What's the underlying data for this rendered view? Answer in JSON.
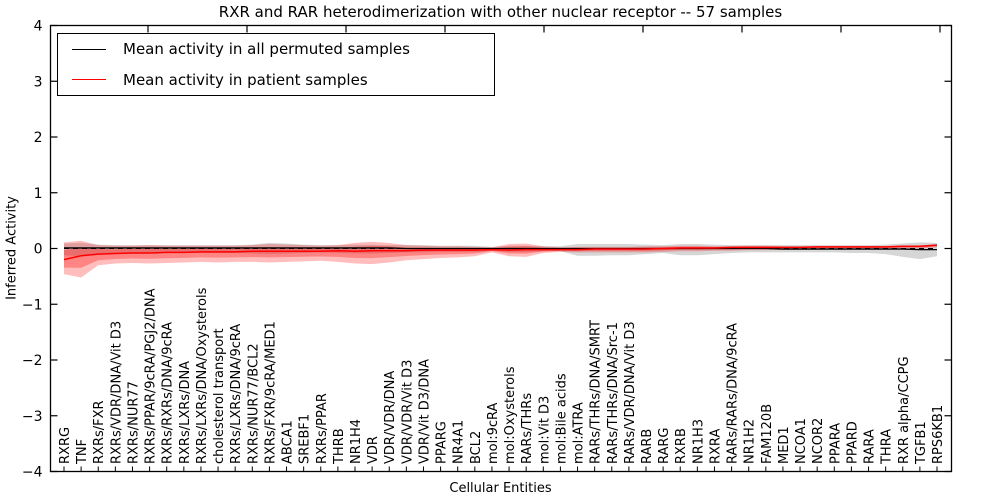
{
  "figure": {
    "title": "RXR and RAR heterodimerization with other nuclear receptor -- 57 samples",
    "xlabel": "Cellular Entities",
    "ylabel": "Inferred Activity"
  },
  "legend": {
    "items": [
      {
        "label": "Mean activity in all permuted samples",
        "color": "#000000"
      },
      {
        "label": "Mean activity in patient samples",
        "color": "#ff0000"
      }
    ]
  },
  "chart_data": {
    "type": "line",
    "title": "RXR and RAR heterodimerization with other nuclear receptor -- 57 samples",
    "xlabel": "Cellular Entities",
    "ylabel": "Inferred Activity",
    "ylim": [
      -4,
      4
    ],
    "yticks": [
      4,
      3,
      2,
      1,
      0,
      -1,
      -2,
      -3,
      -4
    ],
    "grid": false,
    "legend_position": "upper left",
    "zero_line": {
      "y": 0,
      "style": "dashed",
      "color": "#000000"
    },
    "categories": [
      "RXRG",
      "TNF",
      "RXRs/FXR",
      "RXRs/VDR/DNA/Vit D3",
      "RXRs/NUR77",
      "RXRs/PPAR/9cRA/PGJ2/DNA",
      "RXRs/RXRs/DNA/9cRA",
      "RXRs/LXRs/DNA",
      "RXRs/LXRs/DNA/Oxysterols",
      "cholesterol transport",
      "RXRs/LXRs/DNA/9cRA",
      "RXRs/NUR77/BCL2",
      "RXRs/FXR/9cRA/MED1",
      "ABCA1",
      "SREBF1",
      "RXRs/PPAR",
      "THRB",
      "NR1H4",
      "VDR",
      "VDR/VDR/DNA",
      "VDR/VDR/Vit D3",
      "VDR/Vit D3/DNA",
      "PPARG",
      "NR4A1",
      "BCL2",
      "mol:9cRA",
      "mol:Oxysterols",
      "RARs/THRs",
      "mol:Vit D3",
      "mol:Bile acids",
      "mol:ATRA",
      "RARs/THRs/DNA/SMRT",
      "RARs/THRs/DNA/Src-1",
      "RARs/VDR/DNA/Vit D3",
      "RARB",
      "RARG",
      "RXRB",
      "NR1H3",
      "RXRA",
      "RARs/RARs/DNA/9cRA",
      "NR1H2",
      "FAM120B",
      "MED1",
      "NCOA1",
      "NCOR2",
      "PPARA",
      "PPARD",
      "RARA",
      "THRA",
      "RXR alpha/CCPG",
      "TGFB1",
      "RPS6KB1"
    ],
    "series": [
      {
        "name": "Mean activity in all permuted samples",
        "color": "#000000",
        "band_color": "#808080",
        "values": [
          0.01,
          0.01,
          0.01,
          0.01,
          0.01,
          0.01,
          0.01,
          0.01,
          0.01,
          0.01,
          0.01,
          0.01,
          0.01,
          0.01,
          0.01,
          0.01,
          0.01,
          0.01,
          0.01,
          0.01,
          0.0,
          0.0,
          0.0,
          0.0,
          0.0,
          0.0,
          0.0,
          0.0,
          0.0,
          0.0,
          0.0,
          0.0,
          0.0,
          0.0,
          0.0,
          0.0,
          0.0,
          0.0,
          0.0,
          0.0,
          0.0,
          0.0,
          -0.01,
          -0.01,
          -0.01,
          -0.01,
          -0.01,
          -0.01,
          -0.01,
          -0.01,
          -0.02,
          -0.02
        ],
        "band_upper": [
          0.09,
          0.1,
          0.07,
          0.06,
          0.06,
          0.06,
          0.06,
          0.06,
          0.06,
          0.06,
          0.06,
          0.07,
          0.1,
          0.09,
          0.07,
          0.06,
          0.06,
          0.07,
          0.07,
          0.06,
          0.06,
          0.06,
          0.05,
          0.05,
          0.05,
          0.03,
          0.05,
          0.05,
          0.04,
          0.04,
          0.08,
          0.08,
          0.08,
          0.08,
          0.07,
          0.06,
          0.08,
          0.08,
          0.07,
          0.06,
          0.06,
          0.06,
          0.06,
          0.06,
          0.06,
          0.06,
          0.06,
          0.06,
          0.07,
          0.09,
          0.11,
          0.1
        ],
        "band_lower": [
          -0.12,
          -0.14,
          -0.09,
          -0.08,
          -0.08,
          -0.08,
          -0.08,
          -0.08,
          -0.08,
          -0.08,
          -0.08,
          -0.09,
          -0.1,
          -0.09,
          -0.08,
          -0.07,
          -0.08,
          -0.09,
          -0.09,
          -0.08,
          -0.07,
          -0.07,
          -0.06,
          -0.06,
          -0.06,
          -0.04,
          -0.06,
          -0.06,
          -0.05,
          -0.05,
          -0.13,
          -0.13,
          -0.12,
          -0.12,
          -0.1,
          -0.08,
          -0.12,
          -0.12,
          -0.1,
          -0.08,
          -0.07,
          -0.07,
          -0.07,
          -0.07,
          -0.07,
          -0.07,
          -0.08,
          -0.08,
          -0.1,
          -0.15,
          -0.19,
          -0.14
        ]
      },
      {
        "name": "Mean activity in patient samples",
        "color": "#ff0000",
        "band_color": "#ff0000",
        "band_inner_scale": 0.55,
        "values": [
          -0.2,
          -0.13,
          -0.1,
          -0.09,
          -0.08,
          -0.08,
          -0.07,
          -0.07,
          -0.06,
          -0.06,
          -0.06,
          -0.05,
          -0.05,
          -0.05,
          -0.05,
          -0.05,
          -0.04,
          -0.05,
          -0.04,
          -0.04,
          -0.04,
          -0.03,
          -0.03,
          -0.03,
          -0.03,
          -0.02,
          -0.03,
          -0.02,
          -0.02,
          -0.02,
          -0.02,
          -0.01,
          -0.01,
          -0.01,
          -0.01,
          0.0,
          0.01,
          0.01,
          0.01,
          0.02,
          0.02,
          0.02,
          0.02,
          0.02,
          0.03,
          0.03,
          0.03,
          0.03,
          0.03,
          0.04,
          0.04,
          0.06
        ],
        "band_upper": [
          0.11,
          0.14,
          0.06,
          0.05,
          0.05,
          0.06,
          0.05,
          0.05,
          0.05,
          0.05,
          0.05,
          0.06,
          0.08,
          0.07,
          0.06,
          0.05,
          0.06,
          0.1,
          0.12,
          0.1,
          0.06,
          0.05,
          0.04,
          0.04,
          0.03,
          0.02,
          0.08,
          0.09,
          0.04,
          0.02,
          0.03,
          0.03,
          0.03,
          0.03,
          0.04,
          0.04,
          0.05,
          0.05,
          0.04,
          0.04,
          0.05,
          0.05,
          0.04,
          0.04,
          0.04,
          0.04,
          0.04,
          0.04,
          0.04,
          0.05,
          0.05,
          0.08
        ],
        "band_lower": [
          -0.46,
          -0.52,
          -0.3,
          -0.27,
          -0.26,
          -0.27,
          -0.26,
          -0.25,
          -0.24,
          -0.25,
          -0.24,
          -0.24,
          -0.25,
          -0.24,
          -0.23,
          -0.22,
          -0.24,
          -0.27,
          -0.28,
          -0.25,
          -0.21,
          -0.19,
          -0.17,
          -0.16,
          -0.14,
          -0.07,
          -0.14,
          -0.15,
          -0.08,
          -0.06,
          -0.07,
          -0.07,
          -0.07,
          -0.07,
          -0.07,
          -0.06,
          -0.05,
          -0.05,
          -0.04,
          -0.04,
          -0.03,
          -0.03,
          -0.02,
          -0.02,
          -0.02,
          -0.01,
          -0.01,
          -0.01,
          -0.01,
          0.0,
          0.0,
          0.02
        ]
      }
    ]
  }
}
